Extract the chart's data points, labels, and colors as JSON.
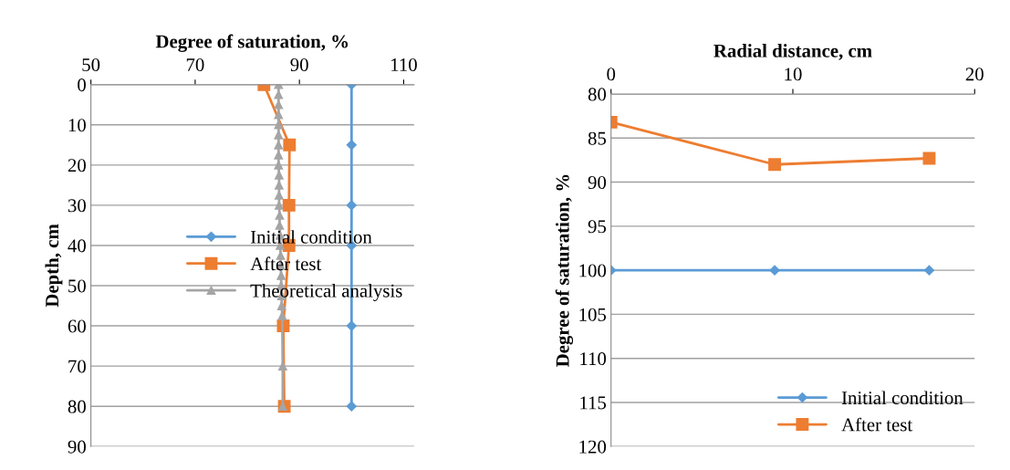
{
  "chart_data": [
    {
      "type": "line",
      "xlabel": "Degree of saturation, %",
      "ylabel": "Depth, cm",
      "xlim": [
        50,
        112
      ],
      "xticks": [
        50,
        70,
        90,
        110
      ],
      "ylim": [
        90,
        0
      ],
      "yticks": [
        0,
        10,
        20,
        30,
        40,
        50,
        60,
        70,
        80,
        90
      ],
      "grid": "y",
      "legend": "right",
      "orientation": "horizontal",
      "series": [
        {
          "name": "Initial condition",
          "color": "#5b9bd5",
          "marker": "diamond",
          "x": [
            0,
            15,
            30,
            40,
            60,
            80
          ],
          "values": [
            100,
            100,
            100,
            100,
            100,
            100
          ]
        },
        {
          "name": "After test",
          "color": "#ed7d31",
          "marker": "square",
          "x": [
            0,
            15,
            30,
            40,
            60,
            80
          ],
          "values": [
            83.2,
            88.1,
            88,
            88,
            86.9,
            87.1
          ]
        },
        {
          "name": "Theoretical analysis",
          "color": "#a5a5a5",
          "marker": "triangle",
          "x": [
            0,
            2.5,
            5,
            7.5,
            10,
            12.5,
            15,
            17.5,
            20,
            22.5,
            25,
            27.5,
            30,
            32.5,
            35,
            37.5,
            40,
            42.5,
            45,
            47.5,
            50,
            52.5,
            55,
            57.5,
            70,
            80
          ],
          "values": [
            86,
            86,
            86,
            86,
            86,
            86,
            86,
            86,
            86,
            86.1,
            86.1,
            86.1,
            86.1,
            86.2,
            86.2,
            86.3,
            86.3,
            86.4,
            86.4,
            86.5,
            86.5,
            86.6,
            86.6,
            86.7,
            86.8,
            86.8
          ]
        }
      ]
    },
    {
      "type": "line",
      "xlabel": "Radial distance, cm",
      "ylabel": "Degree of saturation, %",
      "xlim": [
        0,
        20
      ],
      "xticks": [
        0,
        10,
        20
      ],
      "ylim": [
        120,
        80
      ],
      "yticks": [
        80,
        85,
        90,
        95,
        100,
        105,
        110,
        115,
        120
      ],
      "grid": "y",
      "legend": "bottom right",
      "series": [
        {
          "name": "Initial condition",
          "color": "#5b9bd5",
          "marker": "diamond",
          "x": [
            0,
            9,
            17.5
          ],
          "values": [
            100,
            100,
            100
          ]
        },
        {
          "name": "After test",
          "color": "#ed7d31",
          "marker": "square",
          "x": [
            0,
            9,
            17.5
          ],
          "values": [
            83.2,
            88,
            87.3
          ]
        }
      ]
    }
  ]
}
